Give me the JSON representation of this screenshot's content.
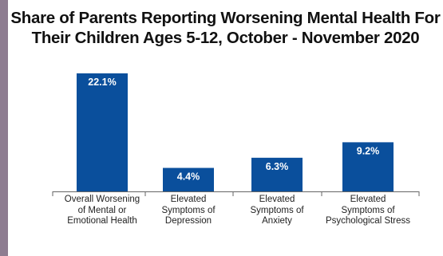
{
  "chart_data": {
    "type": "bar",
    "title": "Share of Parents Reporting Worsening Mental Health For Their Children Ages 5-12, October - November 2020",
    "categories": [
      "Overall Worsening of Mental or Emotional Health",
      "Elevated Symptoms of Depression",
      "Elevated Symptoms of Anxiety",
      "Elevated Symptoms of Psychological Stress"
    ],
    "category_lines": [
      [
        "Overall Worsening",
        "of Mental or",
        "Emotional Health"
      ],
      [
        "Elevated",
        "Symptoms of",
        "Depression"
      ],
      [
        "Elevated",
        "Symptoms of",
        "Anxiety"
      ],
      [
        "Elevated",
        "Symptoms of",
        "Psychological Stress"
      ]
    ],
    "values": [
      22.1,
      4.4,
      6.3,
      9.2
    ],
    "data_labels": [
      "22.1%",
      "4.4%",
      "6.3%",
      "9.2%"
    ],
    "ylim": [
      0,
      25
    ],
    "bar_color": "#0a4f9c",
    "grid": false,
    "legend": "none"
  }
}
